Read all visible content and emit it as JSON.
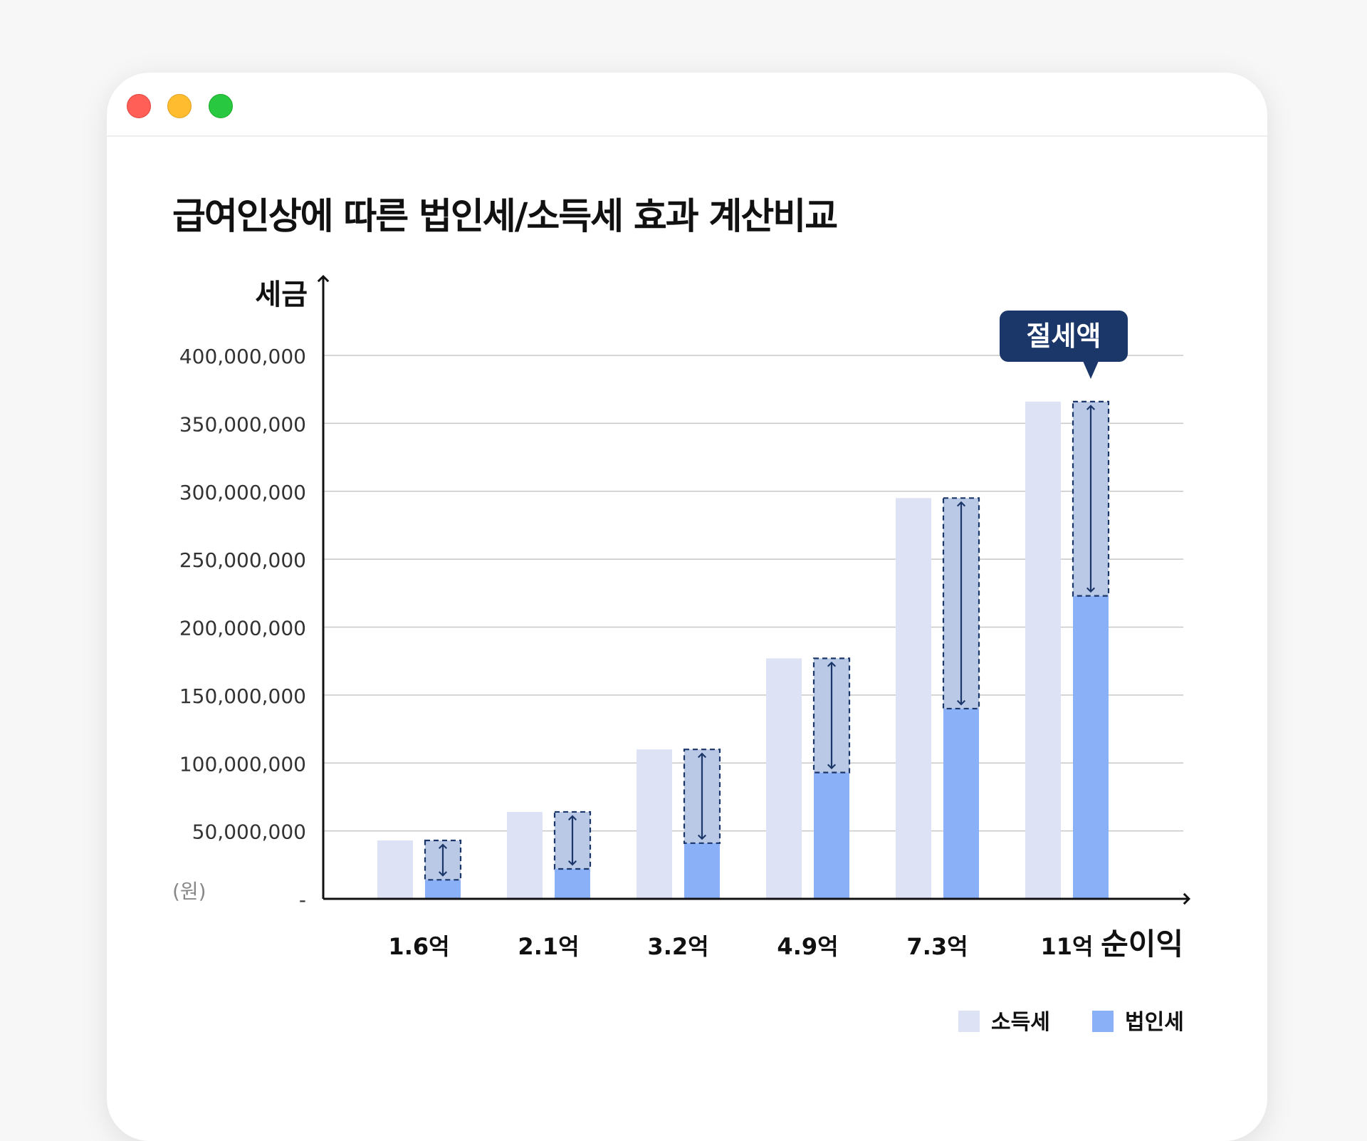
{
  "window": {
    "controls": [
      "close",
      "minimize",
      "maximize"
    ],
    "background": "#ffffff"
  },
  "chart_data": {
    "type": "bar",
    "title": "급여인상에 따른 법인세/소득세 효과 계산비교",
    "ylabel": "세금",
    "xlabel": "순이익",
    "unit_label": "(원)",
    "categories": [
      "1.6억",
      "2.1억",
      "3.2억",
      "4.9억",
      "7.3억",
      "11억"
    ],
    "series": [
      {
        "name": "소득세",
        "color": "#dde3f4",
        "values": [
          43000000,
          64000000,
          110000000,
          177000000,
          295000000,
          366000000
        ]
      },
      {
        "name": "법인세",
        "color": "#8ab0f8",
        "values": [
          14000000,
          22000000,
          41000000,
          93000000,
          140000000,
          223000000
        ]
      }
    ],
    "savings_label": "절세액",
    "savings_color": "#1b3669",
    "savings_fill": "#b9c9e6",
    "ylim": [
      0,
      400000000
    ],
    "ytick_values": [
      0,
      50000000,
      100000000,
      150000000,
      200000000,
      250000000,
      300000000,
      350000000,
      400000000
    ],
    "ytick_labels": [
      "-",
      "50,000,000",
      "100,000,000",
      "150,000,000",
      "200,000,000",
      "250,000,000",
      "300,000,000",
      "350,000,000",
      "400,000,000"
    ],
    "grid": true,
    "legend_position": "bottom-right"
  }
}
